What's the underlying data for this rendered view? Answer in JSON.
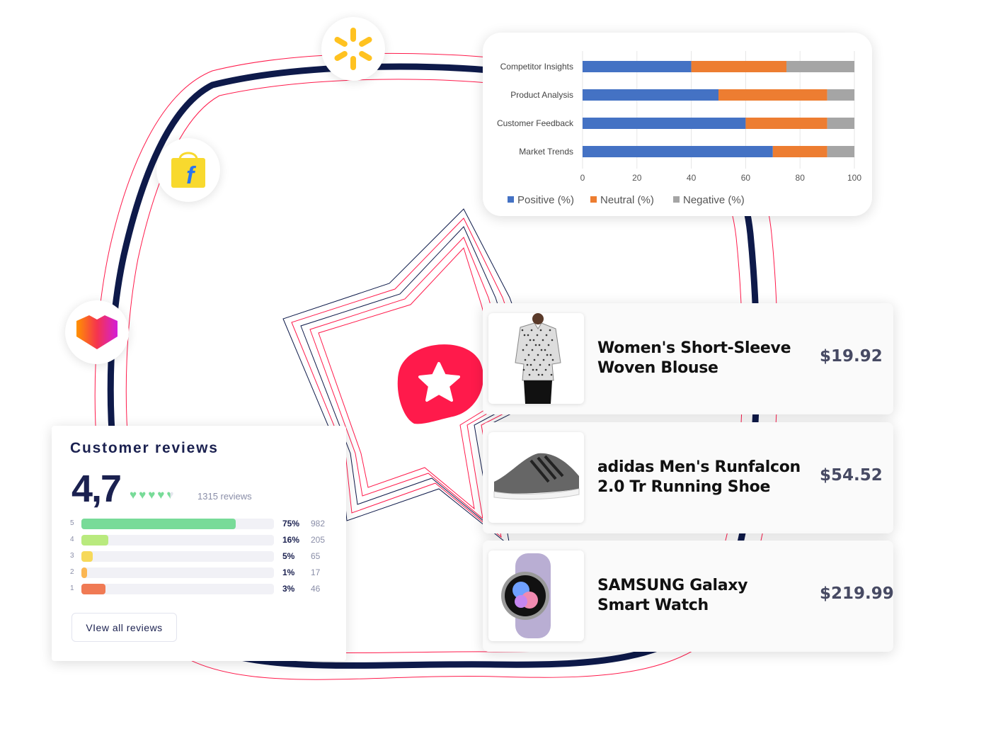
{
  "logos": [
    {
      "icon": "walmart-spark-icon"
    },
    {
      "icon": "flipkart-bag-icon"
    },
    {
      "icon": "lazada-heart-icon"
    }
  ],
  "chart_data": {
    "type": "bar",
    "orientation": "horizontal",
    "stacked": true,
    "categories": [
      "Competitor Insights",
      "Product Analysis",
      "Customer Feedback",
      "Market Trends"
    ],
    "series": [
      {
        "name": "Positive (%)",
        "color": "#4472c4",
        "values": [
          40,
          50,
          60,
          70
        ]
      },
      {
        "name": "Neutral (%)",
        "color": "#ed7d31",
        "values": [
          35,
          40,
          30,
          20
        ]
      },
      {
        "name": "Negative (%)",
        "color": "#a5a5a5",
        "values": [
          25,
          10,
          10,
          10
        ]
      }
    ],
    "xlim": [
      0,
      100
    ],
    "xticks": [
      "0",
      "20",
      "40",
      "60",
      "80",
      "100"
    ],
    "grid": true,
    "legend": "bottom"
  },
  "products": [
    {
      "name": "Women's Short-Sleeve Woven Blouse",
      "price": "$19.92",
      "image": "blouse"
    },
    {
      "name": "adidas Men's Runfalcon 2.0 Tr Running Shoe",
      "price": "$54.52",
      "image": "shoe"
    },
    {
      "name": "SAMSUNG Galaxy Smart Watch",
      "price": "$219.99",
      "image": "watch"
    }
  ],
  "reviews": {
    "title": "Customer reviews",
    "score": "4,7",
    "rating": 4.7,
    "count": "1315 reviews",
    "rows": [
      {
        "star": "5",
        "pct": "75%",
        "count": "982",
        "fill": 0.8,
        "color": "#78db98"
      },
      {
        "star": "4",
        "pct": "16%",
        "count": "205",
        "fill": 0.14,
        "color": "#b9ea7e"
      },
      {
        "star": "3",
        "pct": "5%",
        "count": "65",
        "fill": 0.06,
        "color": "#f6d95a"
      },
      {
        "star": "2",
        "pct": "1%",
        "count": "17",
        "fill": 0.03,
        "color": "#fbb652"
      },
      {
        "star": "1",
        "pct": "3%",
        "count": "46",
        "fill": 0.125,
        "color": "#f07a54"
      }
    ],
    "button": "VIew all reviews"
  },
  "colors": {
    "navy": "#0e1a4a",
    "accent": "#ff1a4b"
  }
}
